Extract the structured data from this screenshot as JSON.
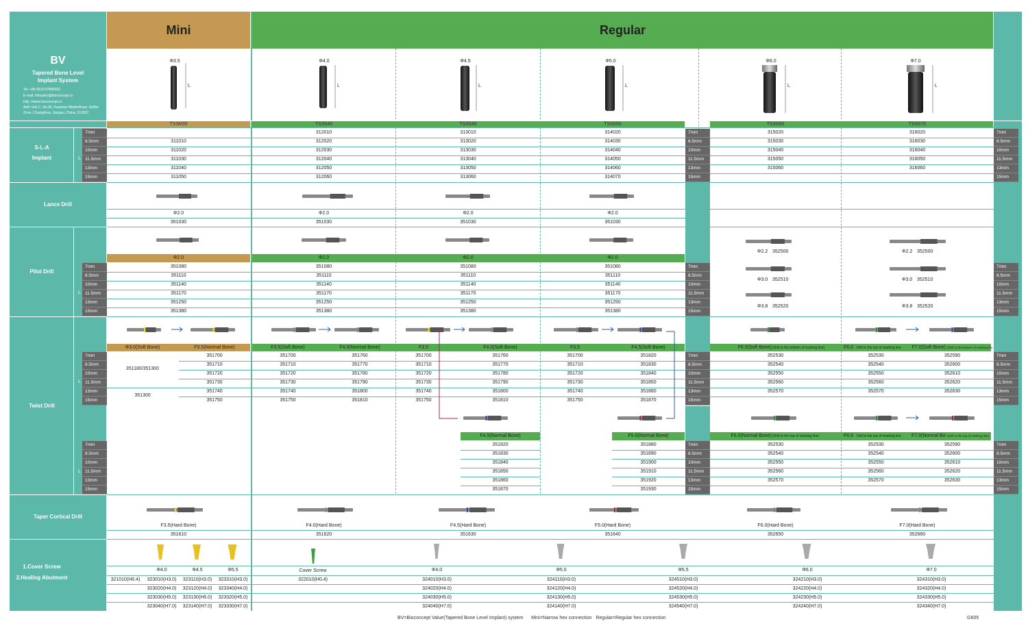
{
  "header": {
    "brand": "BV",
    "subtitle_line1": "Tapered Bone Level",
    "subtitle_line2": "Implant System",
    "tel": "Tel: +86-0519-87896691",
    "email": "E-mail: infosales@bioconcept.cn",
    "web": "http: //www.bioconcept.cn",
    "addr1": "Add: Unit C, No.26, Huashan MiddleRoad, XinBei",
    "addr2": "Zone, Changzhou, Jiangsu, China, 213022",
    "mini": "Mini",
    "regular": "Regular"
  },
  "implants": [
    {
      "dia": "Φ3.5",
      "code": "TS3M35"
    },
    {
      "dia": "Φ4.0",
      "code": "TS3S40"
    },
    {
      "dia": "Φ4.5",
      "code": "TS3S45"
    },
    {
      "dia": "Φ5.0",
      "code": "TS3S50"
    },
    {
      "dia": "Φ6.0",
      "code": "TS3S60"
    },
    {
      "dia": "Φ7.0",
      "code": "TS3S70"
    }
  ],
  "lengths": [
    "7mm",
    "8.5mm",
    "10mm",
    "11.5mm",
    "13mm",
    "15mm"
  ],
  "length_letter": "L",
  "sla": {
    "label1": "S-L-A",
    "label2": "Implant",
    "cols": [
      [
        "",
        "311010",
        "311020",
        "311030",
        "311040",
        "311050"
      ],
      [
        "312010",
        "312020",
        "312030",
        "312040",
        "312050",
        "312060"
      ],
      [
        "313010",
        "313020",
        "313030",
        "313040",
        "313050",
        "313060"
      ],
      [
        "314020",
        "314030",
        "314040",
        "314050",
        "314060",
        "314070"
      ],
      [
        "315020",
        "315030",
        "315040",
        "315050",
        "315060",
        ""
      ],
      [
        "316020",
        "316030",
        "316040",
        "316050",
        "316060",
        ""
      ]
    ]
  },
  "lance": {
    "label": "Lance Drill",
    "dia": "Φ2.0",
    "code": "351030"
  },
  "pilot": {
    "label": "Pilot Drill",
    "dia": "Φ2.0",
    "codes": [
      "351080",
      "351110",
      "351140",
      "351170",
      "351250",
      "351380"
    ],
    "big": [
      {
        "dia": "Φ2.2",
        "code": "352500"
      },
      {
        "dia": "Φ3.0",
        "code": "352510"
      },
      {
        "dia": "Φ3.8",
        "code": "352520"
      }
    ]
  },
  "twist": {
    "label": "Twist Drill",
    "mini_h1": "Φ3.0(Soft Bone)",
    "mini_h2": "F3.5(Normal Bone)",
    "mini_a": "351180/351300",
    "mini_b": "351300",
    "mini_f35": [
      "351700",
      "351710",
      "351720",
      "351730",
      "351740",
      "351750"
    ],
    "r40_h1": "F3.5(Soft Bone)",
    "r40_h2": "F4.0(Normal Bone)",
    "f35": [
      "351700",
      "351710",
      "351720",
      "351730",
      "351740",
      "351750"
    ],
    "f40": [
      "351760",
      "351770",
      "351780",
      "351790",
      "351800",
      "351810"
    ],
    "r45_h1": "F3.5",
    "r45_h2": "F4.0(Soft Bone)",
    "r50_h1": "F3.5",
    "r50_h2": "F4.5(Soft Bone)",
    "f45": [
      "351820",
      "351830",
      "351840",
      "351850",
      "351860",
      "351870"
    ],
    "r60_h": "F6.0(Soft Bone)",
    "r60_note": "(Drill to the bottom of marking line)",
    "f60": [
      "352530",
      "352540",
      "352550",
      "352560",
      "352570",
      ""
    ],
    "r70_h1": "F6.0",
    "r70_note1": "Drill to the top of marking line",
    "r70_h2": "F7.0(Soft Bone)",
    "r70_note2": "(Drill to the bottom of marking line)",
    "f70": [
      "352590",
      "352600",
      "352610",
      "352620",
      "352630",
      ""
    ],
    "n45_h": "F4.5(Normal Bone)",
    "n45": [
      "351820",
      "351830",
      "351840",
      "351850",
      "351860",
      "351870"
    ],
    "n50_h": "F5.0(Normal Bone)",
    "n50": [
      "351880",
      "351890",
      "351900",
      "351910",
      "351920",
      "351930"
    ],
    "n60_h": "F6.0(Normal Bone)",
    "n60_note": "(Drill to the top of marking line)",
    "n70_h1": "F6.0",
    "n70_note1": "Drill to the top of marking line",
    "n70_h2": "F7.0(Normal Bone)",
    "n70_note2": "(Drill to the top of marking line)"
  },
  "taper": {
    "label": "Taper Cortical Drill",
    "items": [
      {
        "name": "F3.5(Hard Bone)",
        "code": "351610"
      },
      {
        "name": "F4.0(Hard Bone)",
        "code": "351620"
      },
      {
        "name": "F4.5(Hard Bone)",
        "code": "351630"
      },
      {
        "name": "F5.0(Hard Bone)",
        "code": "351640"
      },
      {
        "name": "F6.0(Hard Bone)",
        "code": "352650"
      },
      {
        "name": "F7.0(Hard Bone)",
        "code": "352660"
      }
    ]
  },
  "abutment": {
    "label1": "1.Cover Screw",
    "label2": "2.Healing Abutment",
    "mini_cover": "321010(H0.4)",
    "mini": [
      {
        "dia": "Φ4.0",
        "codes": [
          "323010(H3.0)",
          "323020(H4.0)",
          "323030(H5.0)",
          "323040(H7.0)"
        ]
      },
      {
        "dia": "Φ4.5",
        "codes": [
          "323110(H3.0)",
          "323120(H4.0)",
          "323130(H5.0)",
          "323140(H7.0)"
        ]
      },
      {
        "dia": "Φ5.5",
        "codes": [
          "323310(H3.0)",
          "323340(H4.0)",
          "323320(H5.0)",
          "323330(H7.0)"
        ]
      }
    ],
    "cover_label": "Cover Screw",
    "cover_code": "322010(H0.4)",
    "regular": [
      {
        "dia": "Φ4.0",
        "codes": [
          "324010(H3.0)",
          "324020(H4.0)",
          "324030(H5.0)",
          "324040(H7.0)"
        ]
      },
      {
        "dia": "Φ5.0",
        "codes": [
          "324110(H3.0)",
          "324120(H4.0)",
          "324130(H5.0)",
          "324140(H7.0)"
        ]
      },
      {
        "dia": "Φ5.5",
        "codes": [
          "324510(H3.0)",
          "324520(H4.0)",
          "324530(H5.0)",
          "324540(H7.0)"
        ]
      },
      {
        "dia": "Φ6.0",
        "codes": [
          "324210(H3.0)",
          "324220(H4.0)",
          "324230(H5.0)",
          "324240(H7.0)"
        ]
      },
      {
        "dia": "Φ7.0",
        "codes": [
          "324310(H3.0)",
          "324320(H4.0)",
          "324330(H5.0)",
          "324340(H7.0)"
        ]
      }
    ]
  },
  "footer": {
    "note": "BV=Bioconcept Value(Tapered Bone Level Implant) system      Mini=Narrow hex connection   Regular=Regular hex connection",
    "page": "G605"
  },
  "colors": {
    "teal": "#5cb8a8",
    "green": "#56ac50",
    "gold": "#c49a52",
    "gray": "#666666"
  }
}
